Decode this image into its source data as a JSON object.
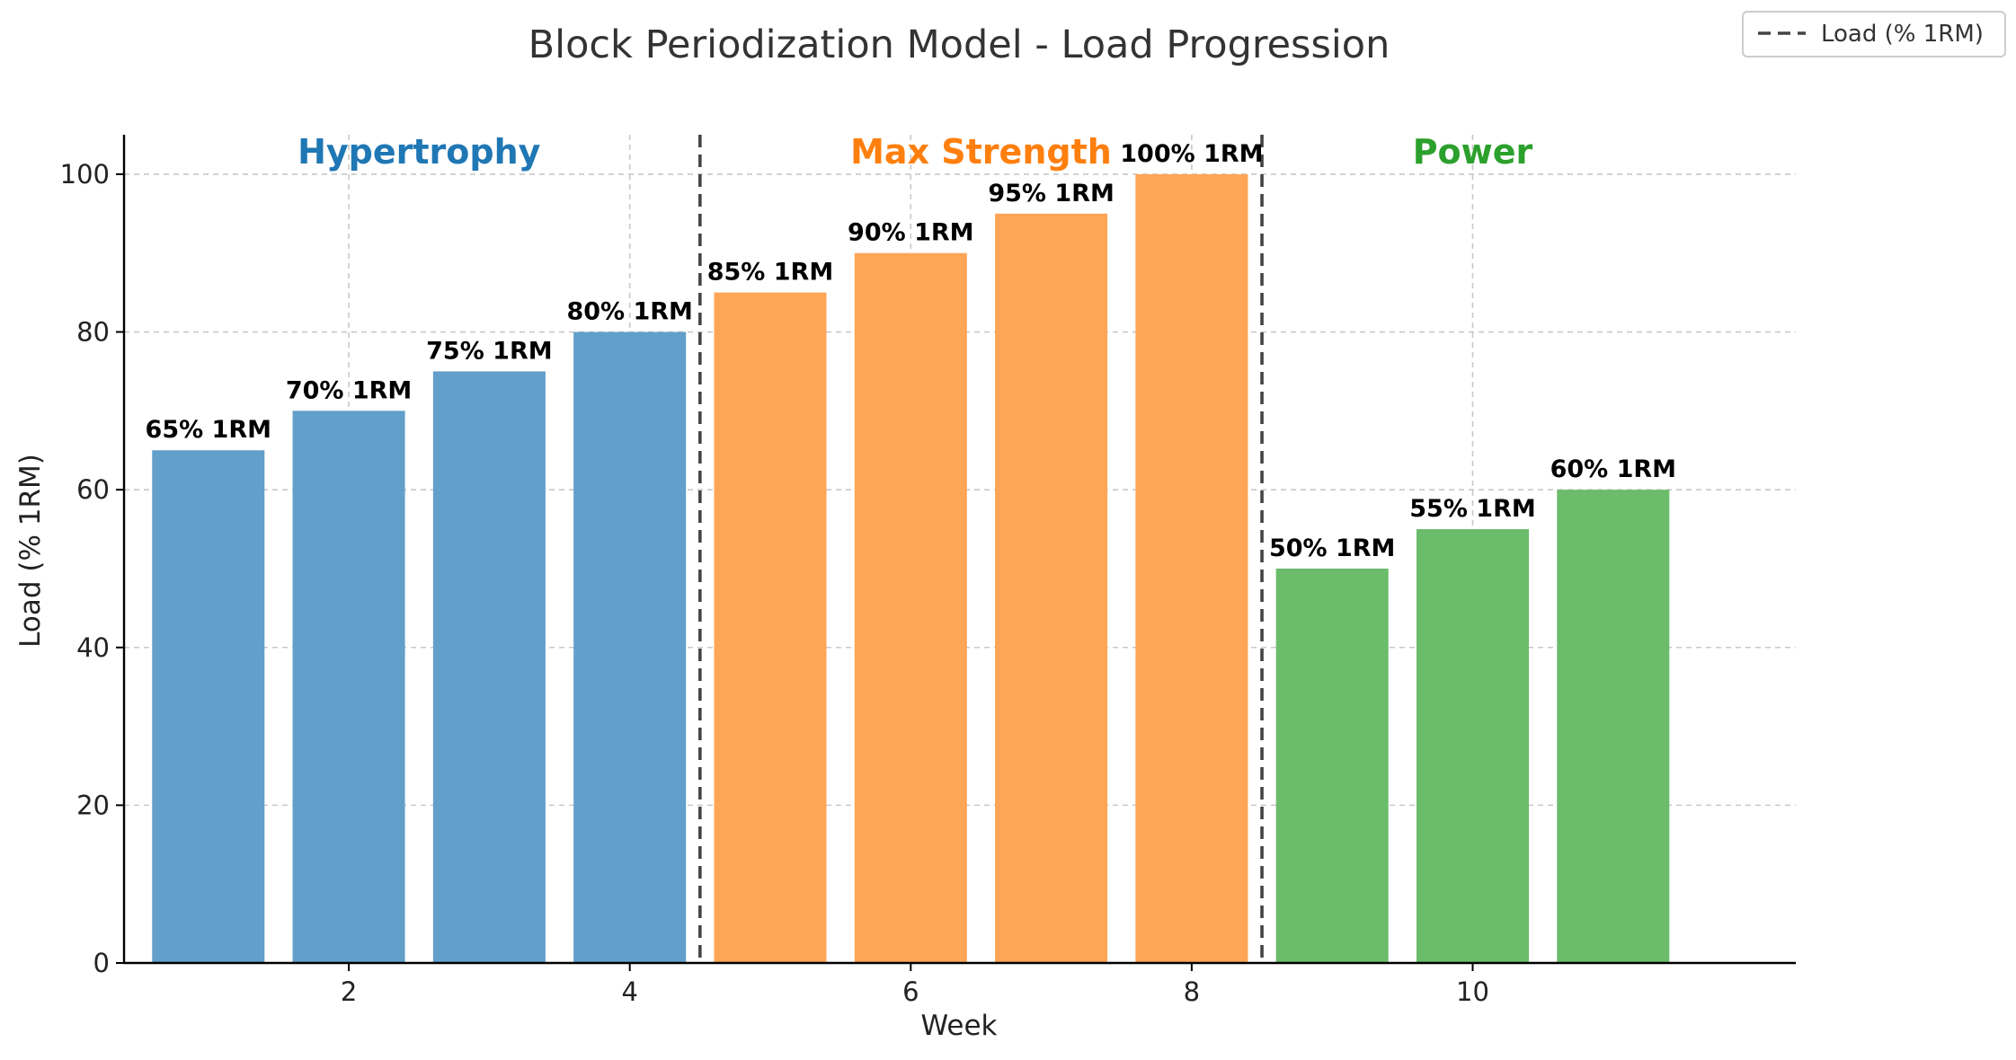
{
  "chart_data": {
    "type": "bar",
    "title": "Block Periodization Model - Load Progression",
    "xlabel": "Week",
    "ylabel": "Load (% 1RM)",
    "xlim": [
      0.4,
      12.3
    ],
    "ylim": [
      0,
      105
    ],
    "x_ticks": [
      2,
      4,
      6,
      8,
      10
    ],
    "y_ticks": [
      0,
      20,
      40,
      60,
      80,
      100
    ],
    "grid": true,
    "x": [
      1,
      2,
      3,
      4,
      5,
      6,
      7,
      8,
      9,
      10,
      11
    ],
    "values": [
      65,
      70,
      75,
      80,
      85,
      90,
      95,
      100,
      50,
      55,
      60
    ],
    "bar_labels": [
      "65% 1RM",
      "70% 1RM",
      "75% 1RM",
      "80% 1RM",
      "85% 1RM",
      "90% 1RM",
      "95% 1RM",
      "100% 1RM",
      "50% 1RM",
      "55% 1RM",
      "60% 1RM"
    ],
    "phases": [
      {
        "name": "Hypertrophy",
        "weeks": [
          1,
          2,
          3,
          4
        ],
        "color": "#1f77b4",
        "bar_color": "#629fca"
      },
      {
        "name": "Max Strength",
        "weeks": [
          5,
          6,
          7,
          8
        ],
        "color": "#ff7f0e",
        "bar_color": "#ffa556"
      },
      {
        "name": "Power",
        "weeks": [
          9,
          10,
          11
        ],
        "color": "#2ca02c",
        "bar_color": "#6bbc6b"
      }
    ],
    "phase_boundaries": [
      4.5,
      8.5
    ],
    "legend": {
      "position": "top-right",
      "entries": [
        {
          "label": "Load (% 1RM)",
          "style": "dashed",
          "color": "#444444"
        }
      ]
    }
  }
}
